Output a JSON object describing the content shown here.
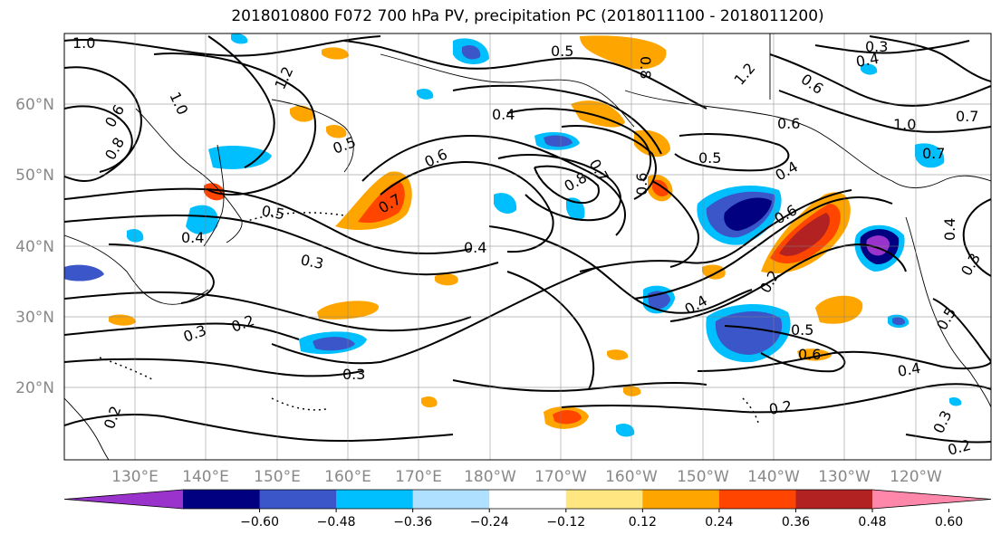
{
  "title": "2018010800 F072 700 hPa PV, precipitation PC (2018011100 - 2018011200)",
  "lat_labels": [
    "60°N",
    "50°N",
    "40°N",
    "30°N",
    "20°N"
  ],
  "lon_labels": [
    "130°E",
    "140°E",
    "150°E",
    "160°E",
    "170°E",
    "180°W",
    "170°W",
    "160°W",
    "150°W",
    "140°W",
    "130°W",
    "120°W"
  ],
  "colorbar": {
    "ticks": [
      "−0.60",
      "−0.48",
      "−0.36",
      "−0.24",
      "−0.12",
      "0.12",
      "0.24",
      "0.36",
      "0.48",
      "0.60"
    ],
    "colors": [
      "#9933cc",
      "#000080",
      "#3a56c8",
      "#00bfff",
      "#b0e0ff",
      "#ffffff",
      "#ffe680",
      "#ffa500",
      "#ff4500",
      "#b22222",
      "#ff88aa"
    ]
  },
  "contour_labels": [
    "1.0",
    "1.2",
    "1.0",
    "0.8",
    "0.6",
    "0.5",
    "0.5",
    "0.4",
    "0.6",
    "0.7",
    "0.8",
    "0.5",
    "0.4",
    "0.3",
    "0.4",
    "0.3",
    "0.7",
    "0.8",
    "0.6",
    "1.2",
    "0.6",
    "1.0",
    "0.7",
    "0.4",
    "0.6",
    "0.2",
    "0.4",
    "0.5",
    "0.6",
    "0.3",
    "0.4",
    "0.2",
    "0.3",
    "0.2",
    "0.2",
    "0.2",
    "0.3",
    "0.5",
    "0.4",
    "0.3",
    "0.4",
    "0.5",
    "0.6",
    "0.7"
  ]
}
